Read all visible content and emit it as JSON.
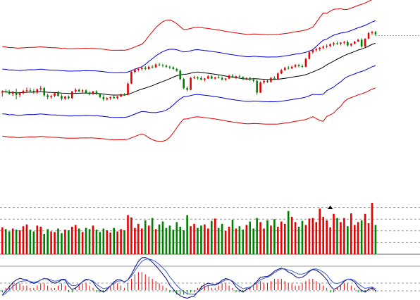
{
  "chart_data": [
    {
      "type": "candlestick",
      "panel": "price",
      "candles": [
        [
          5.0,
          5.4,
          4.3,
          5.2
        ],
        [
          5.2,
          5.6,
          4.9,
          5.1
        ],
        [
          5.1,
          5.5,
          4.6,
          4.8
        ],
        [
          4.8,
          5.3,
          4.4,
          5.1
        ],
        [
          5.1,
          5.7,
          3.8,
          4.6
        ],
        [
          4.6,
          5.1,
          4.2,
          4.9
        ],
        [
          4.9,
          5.5,
          4.7,
          5.3
        ],
        [
          5.3,
          5.9,
          5.0,
          5.4
        ],
        [
          5.4,
          5.8,
          5.1,
          5.3
        ],
        [
          5.3,
          5.6,
          4.8,
          5.0
        ],
        [
          5.0,
          5.7,
          4.8,
          5.6
        ],
        [
          5.6,
          6.2,
          5.3,
          5.8
        ],
        [
          5.8,
          6.0,
          4.3,
          4.5
        ],
        [
          4.5,
          4.8,
          3.8,
          4.2
        ],
        [
          4.2,
          4.6,
          3.9,
          4.4
        ],
        [
          4.4,
          5.0,
          4.2,
          4.9
        ],
        [
          4.9,
          5.3,
          4.3,
          4.4
        ],
        [
          4.4,
          4.7,
          3.6,
          3.9
        ],
        [
          3.9,
          4.4,
          3.7,
          4.3
        ],
        [
          4.3,
          4.5,
          3.8,
          4.0
        ],
        [
          4.0,
          5.3,
          3.9,
          5.2
        ],
        [
          5.2,
          5.8,
          4.9,
          5.5
        ],
        [
          5.5,
          5.7,
          5.1,
          5.2
        ],
        [
          5.2,
          5.6,
          4.9,
          5.4
        ],
        [
          5.4,
          5.6,
          4.8,
          4.9
        ],
        [
          4.9,
          5.2,
          4.5,
          4.7
        ],
        [
          4.7,
          5.3,
          4.6,
          5.2
        ],
        [
          5.2,
          5.4,
          4.6,
          4.7
        ],
        [
          4.7,
          4.9,
          4.0,
          4.2
        ],
        [
          4.2,
          4.6,
          3.5,
          3.8
        ],
        [
          3.8,
          4.2,
          3.6,
          4.0
        ],
        [
          4.0,
          4.3,
          3.7,
          4.2
        ],
        [
          4.2,
          4.5,
          3.9,
          4.0
        ],
        [
          4.0,
          4.4,
          3.8,
          4.3
        ],
        [
          4.3,
          4.8,
          4.2,
          4.7
        ],
        [
          4.7,
          4.9,
          4.4,
          4.6
        ],
        [
          4.6,
          6.8,
          4.5,
          6.6
        ],
        [
          6.6,
          8.9,
          6.5,
          8.7
        ],
        [
          8.7,
          9.3,
          8.4,
          9.1
        ],
        [
          9.1,
          9.5,
          8.8,
          9.2
        ],
        [
          9.2,
          9.6,
          8.9,
          9.4
        ],
        [
          9.4,
          9.7,
          9.0,
          9.2
        ],
        [
          9.2,
          9.8,
          9.1,
          9.6
        ],
        [
          9.6,
          9.9,
          9.3,
          9.5
        ],
        [
          9.5,
          10.2,
          9.4,
          10.0
        ],
        [
          10.0,
          10.3,
          9.7,
          9.9
        ],
        [
          9.9,
          10.1,
          9.5,
          9.8
        ],
        [
          9.8,
          10.0,
          9.4,
          9.6
        ],
        [
          9.6,
          9.8,
          9.2,
          9.5
        ],
        [
          9.5,
          9.7,
          9.1,
          9.2
        ],
        [
          9.2,
          9.4,
          8.7,
          8.9
        ],
        [
          8.9,
          9.1,
          7.2,
          7.4
        ],
        [
          7.4,
          7.6,
          5.6,
          5.8
        ],
        [
          5.8,
          6.1,
          5.2,
          5.5
        ],
        [
          5.5,
          7.8,
          5.4,
          7.6
        ],
        [
          7.6,
          8.0,
          7.4,
          7.7
        ],
        [
          7.7,
          7.9,
          7.3,
          7.6
        ],
        [
          7.6,
          7.9,
          7.2,
          7.3
        ],
        [
          7.3,
          7.6,
          7.0,
          7.5
        ],
        [
          7.5,
          8.1,
          7.4,
          7.9
        ],
        [
          7.9,
          8.1,
          7.4,
          7.5
        ],
        [
          7.5,
          7.8,
          7.3,
          7.7
        ],
        [
          7.7,
          8.1,
          7.5,
          7.6
        ],
        [
          7.6,
          7.9,
          7.2,
          7.3
        ],
        [
          7.3,
          7.6,
          7.1,
          7.5
        ],
        [
          7.5,
          8.2,
          7.4,
          8.0
        ],
        [
          8.0,
          8.3,
          7.6,
          7.7
        ],
        [
          7.7,
          8.0,
          7.4,
          7.9
        ],
        [
          7.9,
          8.2,
          7.7,
          7.8
        ],
        [
          7.8,
          7.9,
          7.2,
          7.4
        ],
        [
          7.4,
          7.7,
          7.2,
          7.6
        ],
        [
          7.6,
          7.8,
          7.1,
          7.3
        ],
        [
          7.3,
          7.6,
          6.8,
          7.1
        ],
        [
          7.1,
          7.3,
          4.6,
          5.0
        ],
        [
          5.0,
          7.0,
          4.9,
          6.8
        ],
        [
          6.8,
          7.3,
          6.6,
          7.1
        ],
        [
          7.1,
          7.4,
          6.7,
          6.9
        ],
        [
          6.9,
          7.8,
          6.8,
          7.6
        ],
        [
          7.6,
          7.9,
          7.2,
          7.4
        ],
        [
          7.4,
          8.6,
          7.3,
          8.4
        ],
        [
          8.4,
          9.2,
          8.3,
          9.0
        ],
        [
          9.0,
          9.6,
          8.9,
          9.4
        ],
        [
          9.4,
          9.7,
          9.1,
          9.3
        ],
        [
          9.3,
          9.8,
          9.2,
          9.6
        ],
        [
          9.6,
          10.1,
          9.4,
          9.9
        ],
        [
          9.9,
          10.1,
          9.5,
          9.7
        ],
        [
          9.7,
          10.0,
          9.4,
          9.6
        ],
        [
          9.6,
          11.2,
          9.5,
          11.0
        ],
        [
          11.0,
          12.4,
          10.9,
          12.2
        ],
        [
          12.2,
          12.8,
          11.9,
          12.6
        ],
        [
          12.6,
          13.0,
          12.3,
          12.7
        ],
        [
          12.7,
          13.1,
          12.4,
          13.0
        ],
        [
          13.0,
          13.4,
          12.7,
          13.2
        ],
        [
          13.2,
          13.6,
          12.9,
          13.3
        ],
        [
          13.3,
          13.8,
          13.1,
          13.6
        ],
        [
          13.6,
          14.0,
          13.3,
          13.8
        ],
        [
          13.8,
          14.1,
          13.5,
          13.7
        ],
        [
          13.7,
          14.0,
          13.4,
          13.9
        ],
        [
          13.9,
          14.2,
          13.6,
          14.0
        ],
        [
          14.0,
          14.3,
          13.2,
          13.4
        ],
        [
          13.4,
          13.8,
          13.2,
          13.7
        ],
        [
          13.7,
          14.2,
          13.6,
          14.1
        ],
        [
          14.1,
          14.6,
          14.0,
          14.4
        ],
        [
          14.4,
          14.7,
          13.0,
          13.2
        ],
        [
          13.2,
          14.7,
          13.1,
          14.6
        ],
        [
          14.6,
          15.8,
          14.5,
          15.6
        ],
        [
          15.6,
          16.0,
          15.3,
          15.8
        ],
        [
          15.8,
          16.0,
          15.1,
          15.4
        ]
      ],
      "colors": {
        "up": "#e60000",
        "down": "#008000",
        "ma": "#000000",
        "inner_band": "#0000dd",
        "outer_band": "#dd0000",
        "marker": "#999999"
      }
    },
    {
      "type": "bar",
      "panel": "volume",
      "values": [
        46,
        43,
        39,
        44,
        42,
        41,
        48,
        51,
        42,
        39,
        49,
        47,
        35,
        43,
        39,
        38,
        44,
        36,
        42,
        41,
        47,
        50,
        44,
        38,
        45,
        43,
        49,
        42,
        38,
        44,
        41,
        37,
        45,
        39,
        43,
        41,
        67,
        63,
        45,
        52,
        44,
        58,
        49,
        62,
        43,
        51,
        56,
        45,
        49,
        42,
        55,
        47,
        41,
        67,
        48,
        52,
        45,
        49,
        51,
        44,
        57,
        61,
        45,
        52,
        40,
        47,
        59,
        44,
        48,
        42,
        50,
        56,
        44,
        62,
        55,
        44,
        58,
        49,
        60,
        47,
        56,
        52,
        74,
        64,
        55,
        47,
        57,
        50,
        61,
        62,
        55,
        78,
        64,
        58,
        46,
        69,
        62,
        55,
        62,
        48,
        70,
        50,
        55,
        58,
        69,
        53,
        88,
        50
      ],
      "colors": {
        "up": "#e60000",
        "down": "#008000",
        "grid": "#999999"
      }
    },
    {
      "type": "bar",
      "panel": "oscillator",
      "values": [
        -1,
        1,
        2,
        3,
        3,
        3,
        2,
        2,
        1,
        1,
        2,
        3,
        3,
        2,
        1,
        1,
        2,
        3,
        2,
        -1,
        -1,
        1,
        2,
        3,
        3,
        2,
        1,
        -1,
        -1,
        -1,
        1,
        2,
        3,
        3,
        2,
        1,
        3,
        5,
        7,
        8,
        8,
        7,
        6,
        5,
        4,
        3,
        2,
        1,
        -1,
        -1,
        -2,
        -2,
        -2,
        -2,
        -1,
        -1,
        1,
        2,
        2,
        2,
        1,
        1,
        2,
        3,
        3,
        2,
        1,
        -1,
        -1,
        -1,
        1,
        1,
        2,
        3,
        4,
        3,
        3,
        4,
        5,
        5,
        5,
        4,
        3,
        3,
        2,
        2,
        3,
        4,
        5,
        5,
        4,
        3,
        2,
        1,
        -1,
        -1,
        1,
        2,
        3,
        3,
        2,
        1,
        -1,
        -1,
        -1,
        1,
        1,
        -1
      ],
      "colors": {
        "up": "#e60000",
        "down": "#008000",
        "line_a": "#000080",
        "line_b": "#3a5fcd",
        "grid": "#999999"
      }
    }
  ]
}
